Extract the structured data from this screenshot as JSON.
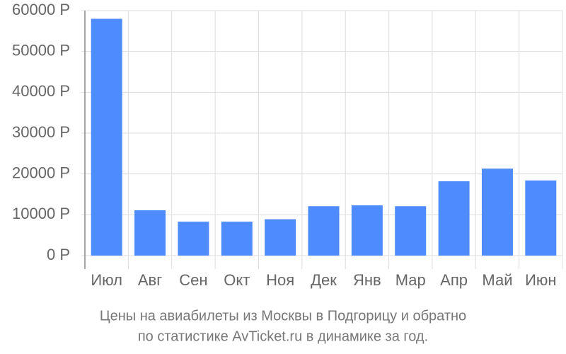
{
  "chart_data": {
    "type": "bar",
    "title": [
      "Цены на авиабилеты из Москвы в Подгорицу и обратно",
      "по статистике AvTicket.ru в динамике за год."
    ],
    "categories": [
      "Июл",
      "Авг",
      "Сен",
      "Окт",
      "Ноя",
      "Дек",
      "Янв",
      "Мар",
      "Апр",
      "Май",
      "Июн"
    ],
    "values": [
      58000,
      11100,
      8300,
      8300,
      8900,
      12100,
      12300,
      12100,
      18200,
      21300,
      18400
    ],
    "color": "#4e8bfc",
    "ylim": [
      0,
      60000
    ],
    "yticks": [
      {
        "value": 0,
        "label": "0 Р"
      },
      {
        "value": 10000,
        "label": "10000 Р"
      },
      {
        "value": 20000,
        "label": "20000 Р"
      },
      {
        "value": 30000,
        "label": "30000 Р"
      },
      {
        "value": 40000,
        "label": "40000 Р"
      },
      {
        "value": 50000,
        "label": "50000 Р"
      },
      {
        "value": 60000,
        "label": "60000 Р"
      }
    ],
    "grid": true
  }
}
